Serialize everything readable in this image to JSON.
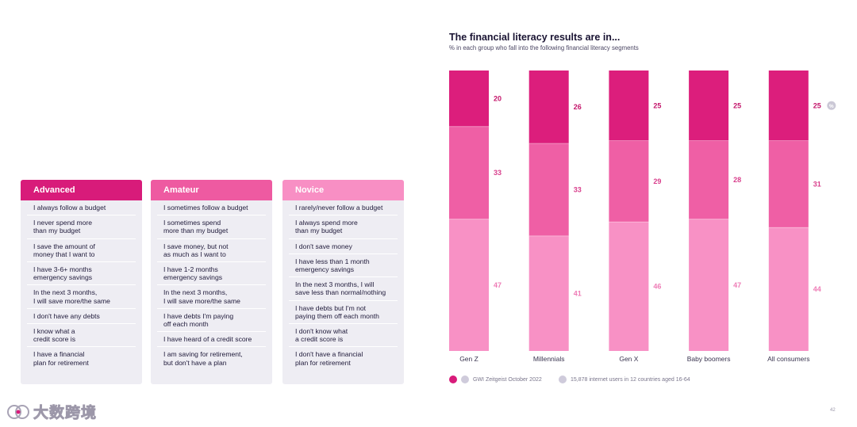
{
  "segments": [
    {
      "id": "advanced",
      "title": "Advanced",
      "color": "#d81b7a",
      "items": [
        "I always follow a budget",
        "I never spend more\nthan my budget",
        "I save the amount of\nmoney that I want to",
        "I have 3-6+ months\nemergency savings",
        "In the next 3 months,\nI will save more/the same",
        "I don't have any debts",
        "I know what a\ncredit score is",
        "I have a financial\nplan for retirement"
      ]
    },
    {
      "id": "amateur",
      "title": "Amateur",
      "color": "#ee5aa1",
      "items": [
        "I sometimes follow a budget",
        "I sometimes spend\nmore than my budget",
        "I save money, but not\nas much as I want to",
        "I have 1-2 months\nemergency savings",
        "In the next 3 months,\nI will save more/the same",
        "I have debts I'm paying\noff each month",
        "I have heard of a credit score",
        "I am saving for retirement,\nbut don't have a plan"
      ]
    },
    {
      "id": "novice",
      "title": "Novice",
      "color": "#f88fc4",
      "items": [
        "I rarely/never follow a budget",
        "I always spend more\nthan my budget",
        "I don't save money",
        "I have less than 1 month\nemergency savings",
        "In the next 3 months, I will\nsave less than normal/nothing",
        "I have debts but I'm not\npaying them off each month",
        "I don't know what\na credit score is",
        "I don't have a financial\nplan for retirement"
      ]
    }
  ],
  "chart_data": {
    "type": "bar",
    "stacked": true,
    "title": "The financial literacy results are in...",
    "subtitle": "% in each group who fall into the following financial literacy segments",
    "categories": [
      "Gen Z",
      "Millennials",
      "Gen X",
      "Baby boomers",
      "All consumers"
    ],
    "series": [
      {
        "name": "Advanced",
        "color": "#dc1e7c",
        "values": [
          20,
          26,
          25,
          25,
          25
        ]
      },
      {
        "name": "Amateur",
        "color": "#ef5fa5",
        "values": [
          33,
          33,
          29,
          28,
          31
        ]
      },
      {
        "name": "Novice",
        "color": "#f891c5",
        "values": [
          47,
          41,
          46,
          47,
          44
        ]
      }
    ],
    "ylim": [
      0,
      100
    ],
    "label_colors": [
      "#c4166b",
      "#d83f8c",
      "#ee7cb6"
    ],
    "badge": "%"
  },
  "footer": {
    "source": "GWI Zeitgeist October 2022",
    "sample": "15,878 internet users in 12 countries aged 16-64"
  },
  "page_number": "42",
  "watermark": "大数跨境"
}
